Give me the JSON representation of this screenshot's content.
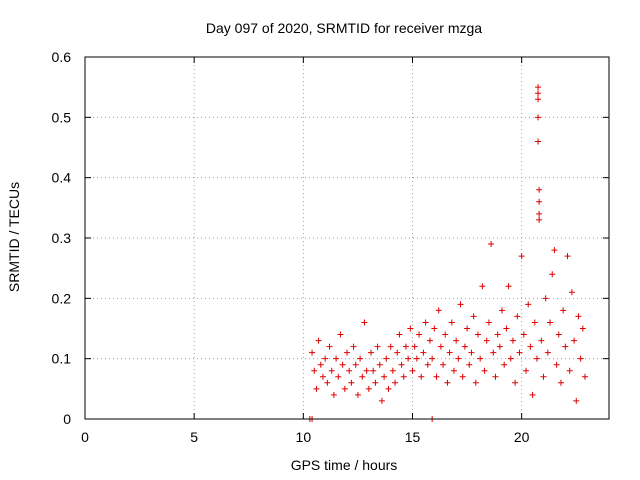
{
  "chart_data": {
    "type": "scatter",
    "title": "Day 097 of 2020, SRMTID for receiver mzga",
    "xlabel": "GPS time / hours",
    "ylabel": "SRMTID / TECUs",
    "xlim": [
      0,
      24
    ],
    "ylim": [
      0,
      0.6
    ],
    "xticks": [
      0,
      5,
      10,
      15,
      20
    ],
    "xtick_labels": [
      "0",
      "5",
      "10",
      "15",
      "20"
    ],
    "yticks": [
      0,
      0.1,
      0.2,
      0.3,
      0.4,
      0.5,
      0.6
    ],
    "ytick_labels": [
      "0",
      "0.1",
      "0.2",
      "0.3",
      "0.4",
      "0.5",
      "0.6"
    ],
    "grid": true,
    "marker": "plus",
    "series": [
      {
        "name": "SRMTID",
        "color": "#e00000",
        "points": [
          [
            10.3,
            0.0
          ],
          [
            10.4,
            0.0
          ],
          [
            15.9,
            0.0
          ],
          [
            10.4,
            0.11
          ],
          [
            10.5,
            0.08
          ],
          [
            10.6,
            0.05
          ],
          [
            10.7,
            0.13
          ],
          [
            10.8,
            0.09
          ],
          [
            10.9,
            0.07
          ],
          [
            11.0,
            0.1
          ],
          [
            11.1,
            0.06
          ],
          [
            11.2,
            0.12
          ],
          [
            11.3,
            0.08
          ],
          [
            11.4,
            0.04
          ],
          [
            11.5,
            0.1
          ],
          [
            11.6,
            0.07
          ],
          [
            11.7,
            0.14
          ],
          [
            11.8,
            0.09
          ],
          [
            11.9,
            0.05
          ],
          [
            12.0,
            0.11
          ],
          [
            12.1,
            0.08
          ],
          [
            12.2,
            0.06
          ],
          [
            12.3,
            0.12
          ],
          [
            12.4,
            0.09
          ],
          [
            12.5,
            0.04
          ],
          [
            12.6,
            0.1
          ],
          [
            12.7,
            0.07
          ],
          [
            12.8,
            0.16
          ],
          [
            12.9,
            0.08
          ],
          [
            13.0,
            0.05
          ],
          [
            13.1,
            0.11
          ],
          [
            13.2,
            0.08
          ],
          [
            13.3,
            0.06
          ],
          [
            13.4,
            0.12
          ],
          [
            13.5,
            0.09
          ],
          [
            13.6,
            0.03
          ],
          [
            13.7,
            0.07
          ],
          [
            13.8,
            0.1
          ],
          [
            13.9,
            0.05
          ],
          [
            14.0,
            0.12
          ],
          [
            14.1,
            0.08
          ],
          [
            14.2,
            0.06
          ],
          [
            14.3,
            0.11
          ],
          [
            14.4,
            0.14
          ],
          [
            14.5,
            0.09
          ],
          [
            14.6,
            0.07
          ],
          [
            14.7,
            0.12
          ],
          [
            14.8,
            0.1
          ],
          [
            14.9,
            0.15
          ],
          [
            15.0,
            0.08
          ],
          [
            15.1,
            0.12
          ],
          [
            15.2,
            0.1
          ],
          [
            15.3,
            0.14
          ],
          [
            15.4,
            0.07
          ],
          [
            15.5,
            0.11
          ],
          [
            15.6,
            0.16
          ],
          [
            15.7,
            0.09
          ],
          [
            15.8,
            0.13
          ],
          [
            15.9,
            0.1
          ],
          [
            16.0,
            0.15
          ],
          [
            16.1,
            0.07
          ],
          [
            16.2,
            0.18
          ],
          [
            16.3,
            0.12
          ],
          [
            16.4,
            0.09
          ],
          [
            16.5,
            0.14
          ],
          [
            16.6,
            0.06
          ],
          [
            16.7,
            0.11
          ],
          [
            16.8,
            0.16
          ],
          [
            16.9,
            0.08
          ],
          [
            17.0,
            0.13
          ],
          [
            17.1,
            0.1
          ],
          [
            17.2,
            0.19
          ],
          [
            17.3,
            0.07
          ],
          [
            17.4,
            0.12
          ],
          [
            17.5,
            0.15
          ],
          [
            17.6,
            0.09
          ],
          [
            17.7,
            0.11
          ],
          [
            17.8,
            0.17
          ],
          [
            17.9,
            0.06
          ],
          [
            18.0,
            0.14
          ],
          [
            18.1,
            0.1
          ],
          [
            18.2,
            0.22
          ],
          [
            18.3,
            0.08
          ],
          [
            18.4,
            0.13
          ],
          [
            18.5,
            0.16
          ],
          [
            18.6,
            0.29
          ],
          [
            18.7,
            0.11
          ],
          [
            18.8,
            0.07
          ],
          [
            18.9,
            0.14
          ],
          [
            19.0,
            0.12
          ],
          [
            19.1,
            0.18
          ],
          [
            19.2,
            0.09
          ],
          [
            19.3,
            0.15
          ],
          [
            19.4,
            0.22
          ],
          [
            19.5,
            0.1
          ],
          [
            19.6,
            0.13
          ],
          [
            19.7,
            0.06
          ],
          [
            19.8,
            0.17
          ],
          [
            19.9,
            0.11
          ],
          [
            20.0,
            0.27
          ],
          [
            20.1,
            0.14
          ],
          [
            20.2,
            0.08
          ],
          [
            20.3,
            0.19
          ],
          [
            20.4,
            0.12
          ],
          [
            20.5,
            0.04
          ],
          [
            20.6,
            0.16
          ],
          [
            20.7,
            0.1
          ],
          [
            20.75,
            0.55
          ],
          [
            20.75,
            0.54
          ],
          [
            20.75,
            0.53
          ],
          [
            20.75,
            0.5
          ],
          [
            20.75,
            0.46
          ],
          [
            20.8,
            0.38
          ],
          [
            20.8,
            0.36
          ],
          [
            20.8,
            0.34
          ],
          [
            20.8,
            0.33
          ],
          [
            20.9,
            0.13
          ],
          [
            21.0,
            0.07
          ],
          [
            21.1,
            0.2
          ],
          [
            21.2,
            0.11
          ],
          [
            21.3,
            0.16
          ],
          [
            21.4,
            0.24
          ],
          [
            21.5,
            0.28
          ],
          [
            21.6,
            0.09
          ],
          [
            21.7,
            0.14
          ],
          [
            21.8,
            0.06
          ],
          [
            21.9,
            0.18
          ],
          [
            22.0,
            0.12
          ],
          [
            22.1,
            0.27
          ],
          [
            22.2,
            0.08
          ],
          [
            22.3,
            0.21
          ],
          [
            22.4,
            0.13
          ],
          [
            22.5,
            0.03
          ],
          [
            22.6,
            0.17
          ],
          [
            22.7,
            0.1
          ],
          [
            22.8,
            0.15
          ],
          [
            22.9,
            0.07
          ]
        ]
      }
    ]
  }
}
